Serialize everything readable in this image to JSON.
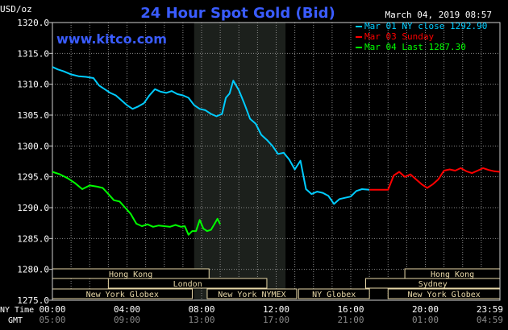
{
  "chart_data": {
    "type": "line",
    "title": "24 Hour Spot Gold (Bid)",
    "date": "March 04, 2019 08:57",
    "watermark": "www.kitco.com",
    "ylabel": "USD/oz",
    "ylim": [
      1275,
      1320
    ],
    "yticks": [
      "1320.0",
      "1315.0",
      "1310.0",
      "1305.0",
      "1300.0",
      "1295.0",
      "1290.0",
      "1285.0",
      "1280.0",
      "1275.0"
    ],
    "xlim": [
      0,
      24
    ],
    "xtick_row_label": "NY Time",
    "xticks_ny": [
      "00:00",
      "04:00",
      "08:00",
      "12:00",
      "16:00",
      "20:00",
      "23:59"
    ],
    "gmt_row_label": "GMT",
    "xticks_gmt": [
      "05:00",
      "09:00",
      "13:00",
      "17:00",
      "21:00",
      "01:00",
      "04:59"
    ],
    "grid": true,
    "legend_position": "top-right",
    "legend": [
      {
        "label": "Mar 01 NY close 1292.90",
        "color": "#00ccff"
      },
      {
        "label": "Mar 03 Sunday",
        "color": "#ff0000"
      },
      {
        "label": "Mar 04 Last 1287.30",
        "color": "#00ff00"
      }
    ],
    "highlight_band": {
      "from": 7.6,
      "to": 12.5,
      "color": "#1c201c"
    },
    "sessions": [
      {
        "label": "Hong Kong",
        "from": 0,
        "to": 8.4,
        "row": 0
      },
      {
        "label": "London",
        "from": 3,
        "to": 11.5,
        "row": 1
      },
      {
        "label": "New York Globex",
        "from": 0,
        "to": 7.5,
        "row": 2
      },
      {
        "label": "New York NYMEX",
        "from": 8.3,
        "to": 13.1,
        "row": 2
      },
      {
        "label": "NY Globex",
        "from": 13.2,
        "to": 17,
        "row": 2
      },
      {
        "label": "Hong Kong",
        "from": 18.9,
        "to": 24,
        "row": 0
      },
      {
        "label": "Sydney",
        "from": 16.8,
        "to": 24,
        "row": 1
      },
      {
        "label": "New York Globex",
        "from": 18,
        "to": 24,
        "row": 2
      }
    ],
    "series": [
      {
        "name": "Mar 01 NY close 1292.90",
        "color": "#00ccff",
        "x": [
          0,
          0.3,
          0.6,
          1.0,
          1.4,
          1.8,
          2.2,
          2.5,
          2.8,
          3.1,
          3.4,
          3.7,
          4.0,
          4.3,
          4.6,
          4.9,
          5.2,
          5.5,
          5.8,
          6.1,
          6.4,
          6.7,
          7.0,
          7.3,
          7.6,
          7.9,
          8.2,
          8.5,
          8.8,
          9.1,
          9.3,
          9.5,
          9.7,
          10.0,
          10.3,
          10.6,
          10.9,
          11.2,
          11.5,
          11.8,
          12.1,
          12.4,
          12.7,
          13.0,
          13.3,
          13.6,
          13.9,
          14.2,
          14.5,
          14.8,
          15.1,
          15.4,
          15.7,
          16.0,
          16.3,
          16.6,
          17.0
        ],
        "values": [
          1312.8,
          1312.4,
          1312.1,
          1311.6,
          1311.3,
          1311.2,
          1311.0,
          1309.8,
          1309.2,
          1308.6,
          1308.2,
          1307.4,
          1306.6,
          1306.0,
          1306.4,
          1306.9,
          1308.2,
          1309.2,
          1308.8,
          1308.6,
          1308.9,
          1308.4,
          1308.2,
          1307.8,
          1306.6,
          1306.0,
          1305.8,
          1305.2,
          1304.8,
          1305.2,
          1307.8,
          1308.5,
          1310.6,
          1309.0,
          1306.8,
          1304.4,
          1303.6,
          1301.8,
          1301.0,
          1300.0,
          1298.7,
          1298.9,
          1297.8,
          1296.2,
          1297.6,
          1293.0,
          1292.2,
          1292.6,
          1292.4,
          1291.9,
          1290.6,
          1291.4,
          1291.6,
          1291.8,
          1292.7,
          1293.0,
          1292.9
        ]
      },
      {
        "name": "Mar 03 Sunday",
        "color": "#ff0000",
        "x": [
          17.0,
          17.5,
          18.0,
          18.3,
          18.6,
          18.9,
          19.2,
          19.5,
          19.8,
          20.1,
          20.4,
          20.7,
          21.0,
          21.3,
          21.6,
          21.9,
          22.2,
          22.5,
          22.8,
          23.1,
          23.4,
          23.7,
          23.99
        ],
        "values": [
          1292.9,
          1292.9,
          1292.9,
          1295.2,
          1295.8,
          1295.0,
          1295.4,
          1294.6,
          1293.8,
          1293.2,
          1293.8,
          1294.6,
          1296.0,
          1296.2,
          1296.0,
          1296.4,
          1295.9,
          1295.6,
          1296.0,
          1296.4,
          1296.1,
          1295.9,
          1295.8
        ]
      },
      {
        "name": "Mar 04 Last 1287.30",
        "color": "#00ff00",
        "x": [
          0,
          0.4,
          0.8,
          1.2,
          1.6,
          2.0,
          2.4,
          2.7,
          3.0,
          3.3,
          3.6,
          3.9,
          4.2,
          4.5,
          4.8,
          5.1,
          5.4,
          5.7,
          6.0,
          6.3,
          6.6,
          6.9,
          7.1,
          7.3,
          7.5,
          7.7,
          7.9,
          8.1,
          8.3,
          8.5,
          8.7,
          8.85,
          9.0
        ],
        "values": [
          1295.8,
          1295.4,
          1294.8,
          1294.0,
          1293.0,
          1293.6,
          1293.4,
          1293.2,
          1292.2,
          1291.2,
          1291.0,
          1290.0,
          1289.0,
          1287.4,
          1287.0,
          1287.3,
          1286.9,
          1287.1,
          1287.0,
          1286.9,
          1287.2,
          1286.9,
          1287.0,
          1285.6,
          1286.2,
          1286.2,
          1288.0,
          1286.6,
          1286.2,
          1286.4,
          1287.4,
          1288.2,
          1287.3
        ]
      }
    ]
  }
}
